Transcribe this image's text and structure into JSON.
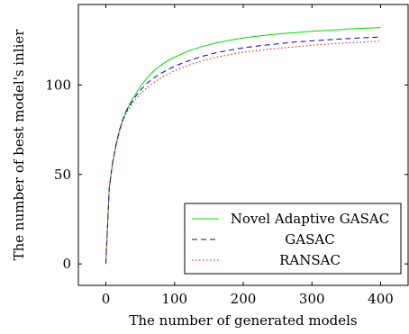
{
  "chart_data": {
    "type": "line",
    "xlabel": "The number of generated models",
    "ylabel": "The number of best model's inlier",
    "xlim": [
      -40,
      440
    ],
    "ylim": [
      -12,
      145
    ],
    "xticks": [
      0,
      100,
      200,
      300,
      400
    ],
    "yticks": [
      0,
      50,
      100
    ],
    "grid": false,
    "legend_position": "bottom-right",
    "x": [
      0,
      5,
      10,
      15,
      20,
      25,
      30,
      40,
      50,
      60,
      70,
      80,
      90,
      100,
      120,
      140,
      160,
      180,
      200,
      225,
      250,
      275,
      300,
      325,
      350,
      375,
      400
    ],
    "series": [
      {
        "name": "Novel Adaptive GASAC",
        "color": "#00dd00",
        "dash": "solid",
        "values": [
          0,
          43,
          57,
          67,
          75,
          81,
          86,
          93,
          99,
          104,
          108,
          111,
          113.5,
          115.5,
          119,
          121.5,
          123.5,
          125,
          126.3,
          127.5,
          128.5,
          129.3,
          130,
          130.6,
          131.2,
          131.7,
          132.1
        ]
      },
      {
        "name": "GASAC",
        "color": "#0000cc",
        "dash": "dashed",
        "values": [
          0,
          43,
          57,
          67,
          75,
          81,
          85.5,
          92,
          97,
          101,
          104,
          106.5,
          108.5,
          110.5,
          113.5,
          116,
          118,
          119.5,
          120.8,
          122,
          123,
          124,
          124.7,
          125.3,
          125.9,
          126.4,
          126.8
        ]
      },
      {
        "name": "RANSAC",
        "color": "#ff0000",
        "dash": "dotted",
        "values": [
          0,
          42,
          56,
          66,
          74,
          80,
          84.5,
          90.5,
          95,
          98.5,
          101.5,
          104,
          106,
          108,
          111,
          113.5,
          115.5,
          117,
          118.3,
          119.5,
          120.5,
          121.4,
          122.2,
          122.9,
          123.5,
          124,
          124.5
        ]
      }
    ]
  }
}
